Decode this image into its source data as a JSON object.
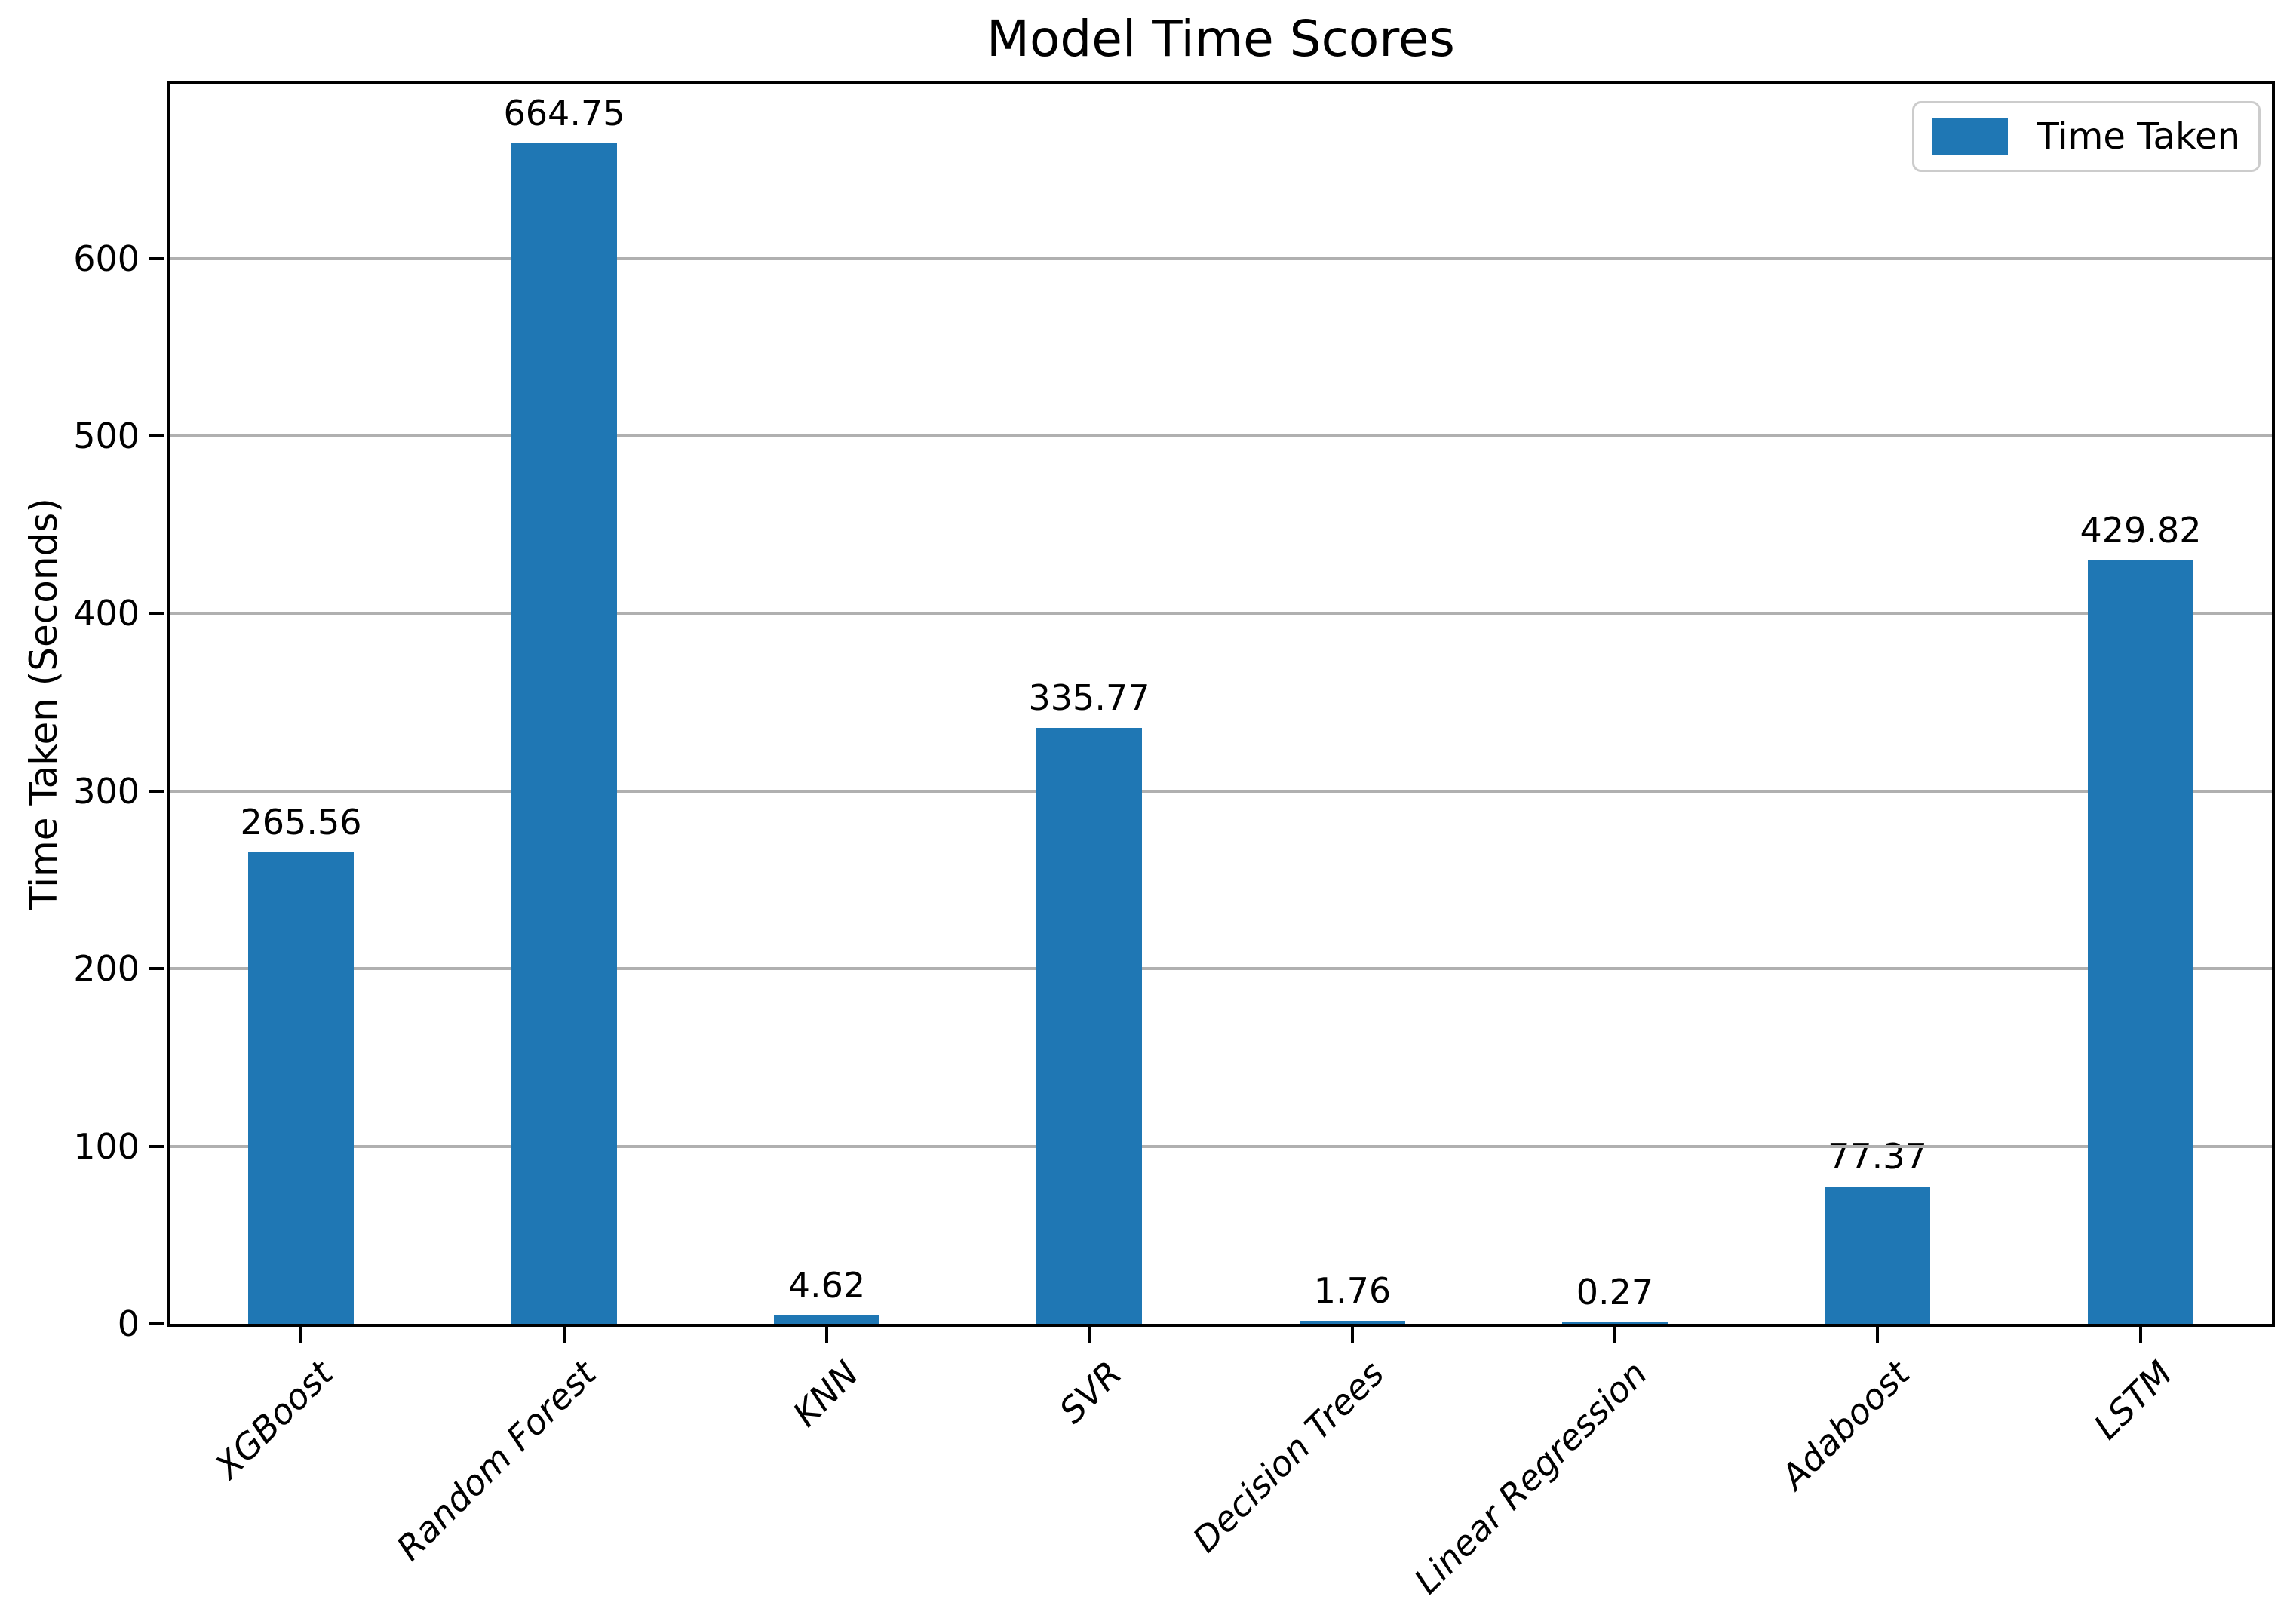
{
  "title": "Model Time Scores",
  "chart_data": {
    "type": "bar",
    "title": "Model Time Scores",
    "xlabel": "",
    "ylabel": "Time Taken (Seconds)",
    "categories": [
      "XGBoost",
      "Random Forest",
      "KNN",
      "SVR",
      "Decision Trees",
      "Linear Regression",
      "Adaboost",
      "LSTM"
    ],
    "values": [
      265.56,
      664.75,
      4.62,
      335.77,
      1.76,
      0.27,
      77.37,
      429.82
    ],
    "series": [
      {
        "name": "Time Taken",
        "values": [
          265.56,
          664.75,
          4.62,
          335.77,
          1.76,
          0.27,
          77.37,
          429.82
        ]
      }
    ],
    "ylim": [
      0,
      698
    ],
    "yticks": [
      0,
      100,
      200,
      300,
      400,
      500,
      600
    ],
    "grid": "horizontal",
    "bar_color": "#1f77b4",
    "grid_color": "#b0b0b0",
    "spine_color": "#000000",
    "x_tick_rotation_deg": 45,
    "legend": {
      "position": "upper right",
      "entries": [
        {
          "label": "Time Taken",
          "color": "#1f77b4"
        }
      ]
    }
  }
}
